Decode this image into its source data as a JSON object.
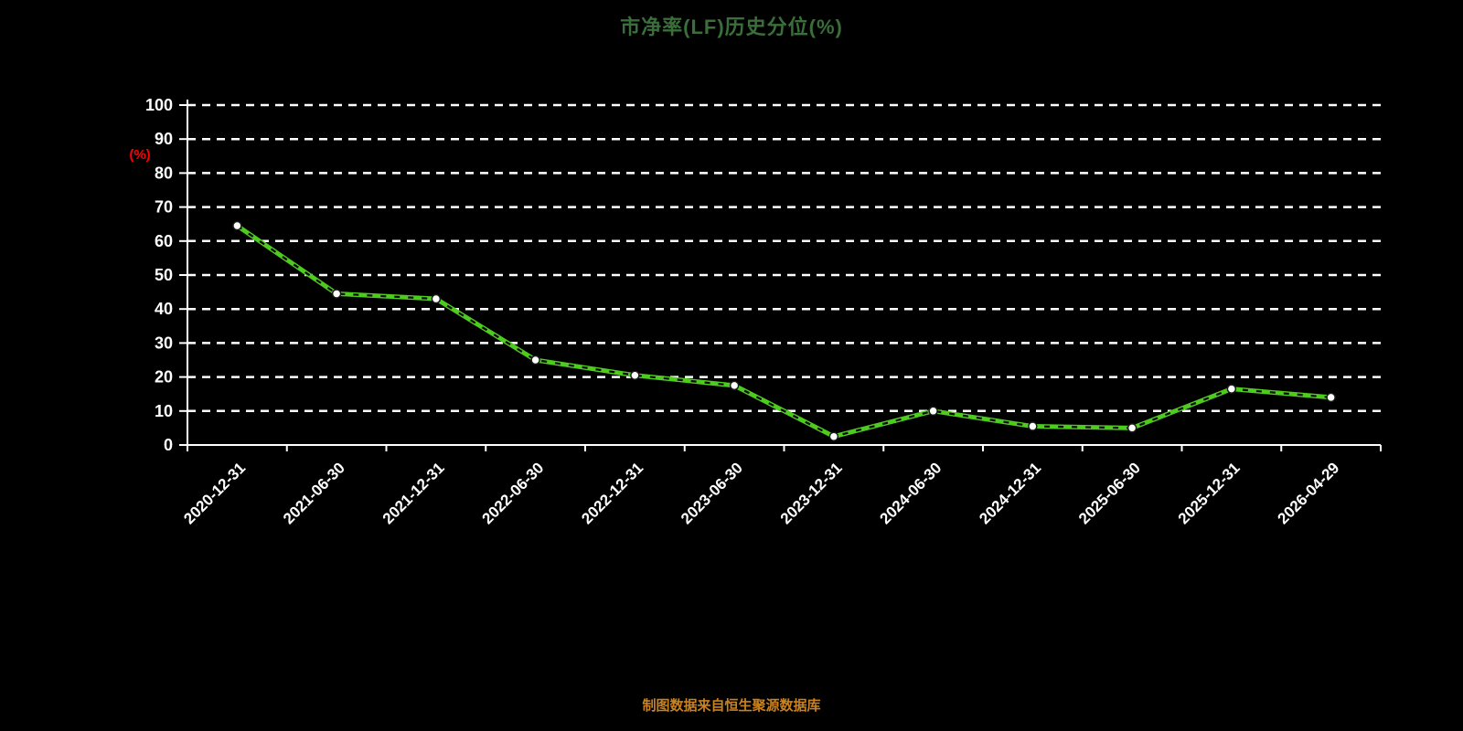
{
  "source_note": "制图数据来自恒生聚源数据库",
  "colors": {
    "background": "#000000",
    "title": "#3a6e3a",
    "source_note": "#c8821e",
    "axis": "#ffffff",
    "gridline": "#ffffff",
    "tick_label": "#ffffff",
    "ylabel": "#ff0000",
    "line": "#4ecb1f",
    "line_dash_overlay": "#0a0a0a",
    "marker_fill": "#ffffff",
    "marker_stroke": "#1a1a1a"
  },
  "chart_data": {
    "type": "line",
    "title": "市净率(LF)历史分位(%)",
    "ylabel": "(%)",
    "xlabel": "",
    "categories": [
      "2020-12-31",
      "2021-06-30",
      "2021-12-31",
      "2022-06-30",
      "2022-12-31",
      "2023-06-30",
      "2023-12-31",
      "2024-06-30",
      "2024-12-31",
      "2025-06-30",
      "2025-12-31",
      "2026-04-29"
    ],
    "series": [
      {
        "name": "市净率(LF)历史分位(%)",
        "values": [
          64.5,
          44.5,
          43,
          25,
          20.5,
          17.5,
          2.5,
          10,
          5.5,
          5,
          16.5,
          14
        ]
      }
    ],
    "ylim": [
      0,
      100
    ],
    "ytick_step": 10,
    "grid": "dashed-horizontal",
    "legend_position": "none"
  }
}
